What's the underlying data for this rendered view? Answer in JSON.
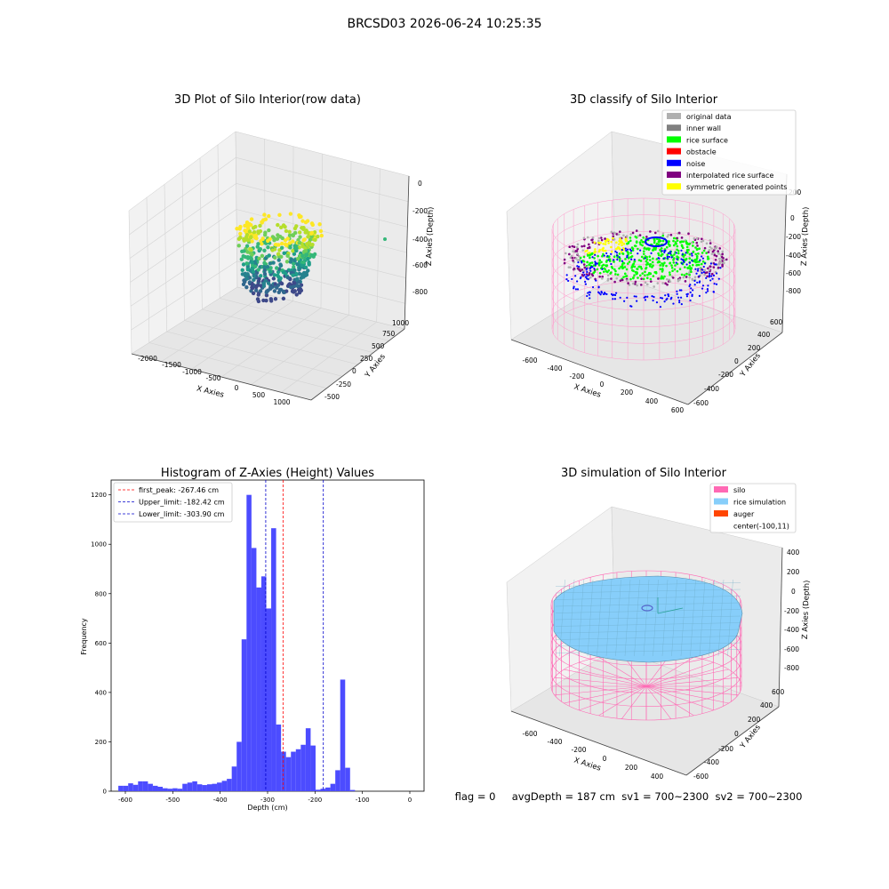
{
  "suptitle": "BRCSD03 2026-06-24 10:25:35",
  "footer": "flag = 0     avgDepth = 187 cm  sv1 = 700~2300  sv2 = 700~2300",
  "colors": {
    "hist_bar": "#4c4cff",
    "first_peak": "#ff0000",
    "limit_line": "#0000cc",
    "silo": "#ff69b4",
    "rice": "#87cefa",
    "auger": "#ff4500"
  },
  "chart_data": [
    {
      "type": "scatter",
      "projection": "3d",
      "title": "3D Plot of Silo Interior(row data)",
      "xlabel": "X Axies",
      "ylabel": "Y Axies",
      "zlabel": "Z Axies (Depth)",
      "x_ticks": [
        "-2000",
        "-1500",
        "-1000",
        "-500",
        "0",
        "500",
        "1000"
      ],
      "y_ticks": [
        "-500",
        "-250",
        "0",
        "250",
        "500",
        "750",
        "1000"
      ],
      "z_ticks": [
        "0",
        "-200",
        "-400",
        "-600",
        "-800"
      ],
      "colormap": "viridis"
    },
    {
      "type": "scatter",
      "projection": "3d",
      "title": "3D classify of Silo Interior",
      "xlabel": "X Axies",
      "ylabel": "Y Axies",
      "zlabel": "Z Axies (Depth)",
      "x_ticks": [
        "-600",
        "-400",
        "-200",
        "0",
        "200",
        "400",
        "600"
      ],
      "y_ticks": [
        "-600",
        "-400",
        "-200",
        "0",
        "200",
        "400",
        "600"
      ],
      "z_ticks": [
        "200",
        "0",
        "-200",
        "-400",
        "-600",
        "-800"
      ],
      "legend": [
        {
          "label": "original data",
          "color": "#b0b0b0"
        },
        {
          "label": "inner wall",
          "color": "#808080"
        },
        {
          "label": "rice surface",
          "color": "#00ff00"
        },
        {
          "label": "obstacle",
          "color": "#ff0000"
        },
        {
          "label": "noise",
          "color": "#0000ff"
        },
        {
          "label": "interpolated rice surface",
          "color": "#800080"
        },
        {
          "label": "symmetric generated points",
          "color": "#ffff00"
        }
      ]
    },
    {
      "type": "bar",
      "title": "Histogram of Z-Axies (Height) Values",
      "xlabel": "Depth (cm)",
      "ylabel": "Frequency",
      "xlim": [
        -630,
        30
      ],
      "ylim": [
        0,
        1260
      ],
      "x_ticks": [
        -600,
        -500,
        -400,
        -300,
        -200,
        -100,
        0
      ],
      "y_ticks": [
        0,
        200,
        400,
        600,
        800,
        1000,
        1200
      ],
      "bin_width": 10.4,
      "bins_start": [
        -614.8,
        -604.4,
        -594.0,
        -583.6,
        -573.2,
        -562.8,
        -552.4,
        -542.0,
        -531.6,
        -521.2,
        -510.8,
        -500.4,
        -490.0,
        -479.6,
        -469.2,
        -458.8,
        -448.4,
        -438.0,
        -427.6,
        -417.2,
        -406.8,
        -396.4,
        -386.0,
        -375.6,
        -365.2,
        -354.8,
        -344.4,
        -334.0,
        -323.6,
        -313.2,
        -302.8,
        -292.4,
        -282.0,
        -271.6,
        -261.2,
        -250.8,
        -240.4,
        -230.0,
        -219.6,
        -209.2,
        -198.8,
        -188.4,
        -178.0,
        -167.6,
        -157.2,
        -146.8,
        -136.4,
        -126.0,
        -115.6,
        -105.2,
        -94.8,
        -84.4,
        -74.0,
        -63.6,
        -53.2,
        -42.8,
        -32.4,
        -22.0,
        -11.6
      ],
      "values": [
        22,
        22,
        32,
        26,
        40,
        40,
        30,
        22,
        18,
        12,
        10,
        12,
        10,
        30,
        35,
        40,
        28,
        25,
        28,
        30,
        35,
        42,
        50,
        100,
        200,
        615,
        1200,
        985,
        825,
        870,
        740,
        1065,
        270,
        160,
        138,
        160,
        170,
        188,
        255,
        185,
        6,
        10,
        15,
        30,
        85,
        452,
        95,
        5
      ],
      "values_start_index": 11,
      "leading_values": [
        22,
        22,
        32,
        26,
        40,
        40,
        30,
        22,
        18,
        12,
        10
      ],
      "legend": [
        {
          "label": "first_peak: -267.46 cm",
          "value": -267.46,
          "color": "#ff0000"
        },
        {
          "label": "Upper_limit: -182.42 cm",
          "value": -182.42,
          "color": "#0000cc"
        },
        {
          "label": "Lower_limit: -303.90 cm",
          "value": -303.9,
          "color": "#0000cc"
        }
      ]
    },
    {
      "type": "surface",
      "projection": "3d",
      "title": "3D simulation of Silo Interior",
      "xlabel": "X Axies",
      "ylabel": "Y Axies",
      "zlabel": "Z Axies (Depth)",
      "x_ticks": [
        "-600",
        "-400",
        "-200",
        "0",
        "200",
        "400"
      ],
      "y_ticks": [
        "-600",
        "-400",
        "-200",
        "0",
        "200",
        "400",
        "600"
      ],
      "z_ticks": [
        "400",
        "200",
        "0",
        "-200",
        "-400",
        "-600",
        "-800"
      ],
      "legend": [
        {
          "label": "silo",
          "color": "#ff69b4"
        },
        {
          "label": "rice simulation",
          "color": "#87cefa"
        },
        {
          "label": "auger",
          "color": "#ff4500"
        },
        {
          "label": "center(-100,11)",
          "color": ""
        }
      ]
    }
  ]
}
